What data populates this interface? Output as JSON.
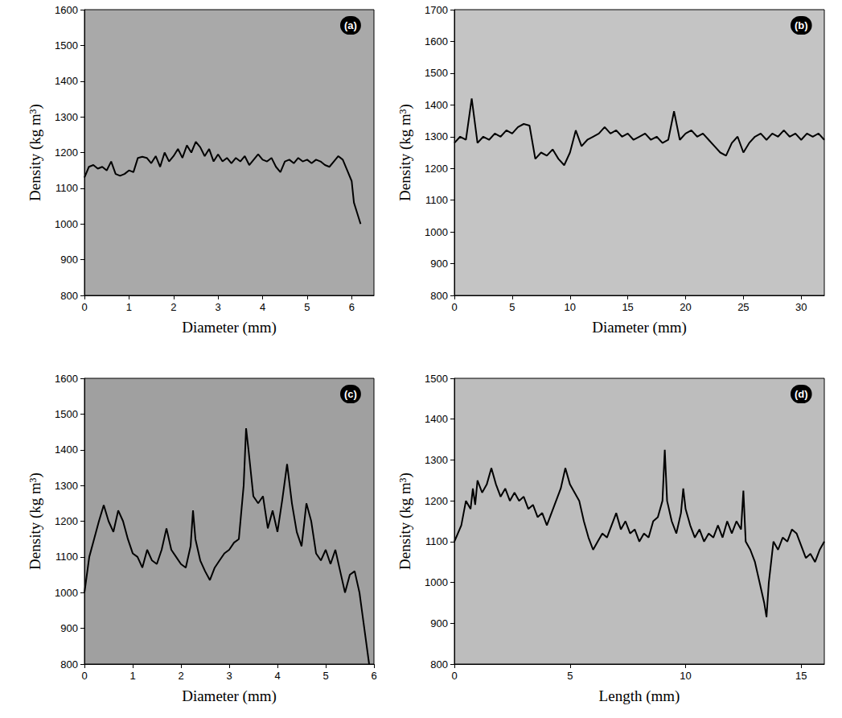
{
  "chart_data": [
    {
      "type": "line",
      "title": "(a)",
      "x_label": "Diameter (mm)",
      "y_label": "Density (kg m³)",
      "color": "#000000",
      "grid": false,
      "xlim": [
        0,
        6.5
      ],
      "xticks": [
        0,
        1,
        2,
        3,
        4,
        5,
        6
      ],
      "ylim": [
        800,
        1600
      ],
      "yticks": [
        800,
        900,
        1000,
        1100,
        1200,
        1300,
        1400,
        1500,
        1600
      ],
      "x": [
        0,
        0.1,
        0.2,
        0.3,
        0.4,
        0.5,
        0.6,
        0.7,
        0.8,
        0.9,
        1.0,
        1.1,
        1.2,
        1.3,
        1.4,
        1.5,
        1.6,
        1.7,
        1.8,
        1.9,
        2.0,
        2.1,
        2.2,
        2.3,
        2.4,
        2.5,
        2.6,
        2.7,
        2.8,
        2.9,
        3.0,
        3.1,
        3.2,
        3.3,
        3.4,
        3.5,
        3.6,
        3.7,
        3.8,
        3.9,
        4.0,
        4.1,
        4.2,
        4.3,
        4.4,
        4.5,
        4.6,
        4.7,
        4.8,
        4.9,
        5.0,
        5.1,
        5.2,
        5.3,
        5.4,
        5.5,
        5.6,
        5.7,
        5.8,
        5.9,
        6.0,
        6.05,
        6.1,
        6.2
      ],
      "values": [
        1130,
        1160,
        1165,
        1155,
        1160,
        1150,
        1175,
        1140,
        1135,
        1140,
        1150,
        1145,
        1185,
        1188,
        1185,
        1170,
        1190,
        1160,
        1200,
        1175,
        1190,
        1210,
        1185,
        1220,
        1200,
        1230,
        1215,
        1190,
        1210,
        1175,
        1195,
        1175,
        1185,
        1170,
        1185,
        1175,
        1190,
        1165,
        1180,
        1195,
        1180,
        1175,
        1185,
        1160,
        1145,
        1175,
        1180,
        1170,
        1185,
        1175,
        1180,
        1170,
        1180,
        1175,
        1165,
        1160,
        1175,
        1190,
        1180,
        1150,
        1120,
        1060,
        1040,
        1000
      ]
    },
    {
      "type": "line",
      "title": "(b)",
      "x_label": "Diameter (mm)",
      "y_label": "Density (kg m³)",
      "color": "#000000",
      "grid": false,
      "xlim": [
        0,
        32
      ],
      "xticks": [
        0,
        5,
        10,
        15,
        20,
        25,
        30
      ],
      "ylim": [
        800,
        1700
      ],
      "yticks": [
        800,
        900,
        1000,
        1100,
        1200,
        1300,
        1400,
        1500,
        1600,
        1700
      ],
      "x": [
        0,
        0.5,
        1,
        1.5,
        2,
        2.5,
        3,
        3.5,
        4,
        4.5,
        5,
        5.5,
        6,
        6.5,
        7,
        7.5,
        8,
        8.5,
        9,
        9.5,
        10,
        10.5,
        11,
        11.5,
        12,
        12.5,
        13,
        13.5,
        14,
        14.5,
        15,
        15.5,
        16,
        16.5,
        17,
        17.5,
        18,
        18.5,
        19,
        19.5,
        20,
        20.5,
        21,
        21.5,
        22,
        22.5,
        23,
        23.5,
        24,
        24.5,
        25,
        25.5,
        26,
        26.5,
        27,
        27.5,
        28,
        28.5,
        29,
        29.5,
        30,
        30.5,
        31,
        31.5,
        32
      ],
      "values": [
        1280,
        1300,
        1290,
        1420,
        1280,
        1300,
        1290,
        1310,
        1300,
        1320,
        1310,
        1330,
        1340,
        1335,
        1230,
        1250,
        1240,
        1260,
        1230,
        1210,
        1250,
        1320,
        1270,
        1290,
        1300,
        1310,
        1330,
        1310,
        1320,
        1300,
        1310,
        1290,
        1300,
        1310,
        1290,
        1300,
        1280,
        1290,
        1380,
        1290,
        1310,
        1320,
        1300,
        1310,
        1290,
        1270,
        1250,
        1240,
        1280,
        1300,
        1250,
        1280,
        1300,
        1310,
        1290,
        1310,
        1300,
        1320,
        1300,
        1310,
        1290,
        1310,
        1300,
        1310,
        1290
      ]
    },
    {
      "type": "line",
      "title": "(c)",
      "x_label": "Diameter (mm)",
      "y_label": "Density (kg m³)",
      "color": "#000000",
      "grid": false,
      "xlim": [
        0,
        6
      ],
      "xticks": [
        0,
        1,
        2,
        3,
        4,
        5,
        6
      ],
      "ylim": [
        800,
        1600
      ],
      "yticks": [
        800,
        900,
        1000,
        1100,
        1200,
        1300,
        1400,
        1500,
        1600
      ],
      "x": [
        0,
        0.1,
        0.2,
        0.3,
        0.4,
        0.5,
        0.6,
        0.7,
        0.8,
        0.9,
        1.0,
        1.1,
        1.2,
        1.3,
        1.4,
        1.5,
        1.6,
        1.7,
        1.8,
        1.9,
        2.0,
        2.1,
        2.2,
        2.25,
        2.3,
        2.4,
        2.5,
        2.6,
        2.7,
        2.8,
        2.9,
        3.0,
        3.1,
        3.2,
        3.3,
        3.35,
        3.4,
        3.5,
        3.6,
        3.7,
        3.8,
        3.9,
        4.0,
        4.1,
        4.2,
        4.3,
        4.4,
        4.5,
        4.6,
        4.7,
        4.8,
        4.9,
        5.0,
        5.1,
        5.2,
        5.3,
        5.4,
        5.5,
        5.6,
        5.7,
        5.8,
        5.9
      ],
      "values": [
        1000,
        1100,
        1150,
        1200,
        1245,
        1200,
        1170,
        1230,
        1200,
        1150,
        1110,
        1100,
        1070,
        1120,
        1090,
        1080,
        1120,
        1180,
        1120,
        1100,
        1080,
        1070,
        1130,
        1230,
        1150,
        1090,
        1060,
        1035,
        1070,
        1090,
        1110,
        1120,
        1140,
        1150,
        1300,
        1460,
        1400,
        1270,
        1250,
        1270,
        1180,
        1230,
        1170,
        1260,
        1360,
        1250,
        1170,
        1130,
        1250,
        1200,
        1110,
        1090,
        1120,
        1080,
        1120,
        1060,
        1000,
        1050,
        1060,
        1000,
        900,
        800
      ]
    },
    {
      "type": "line",
      "title": "(d)",
      "x_label": "Length (mm)",
      "y_label": "Density (kg m³)",
      "color": "#000000",
      "grid": false,
      "xlim": [
        0,
        16
      ],
      "xticks": [
        0,
        5,
        10,
        15
      ],
      "ylim": [
        800,
        1500
      ],
      "yticks": [
        800,
        900,
        1000,
        1100,
        1200,
        1300,
        1400,
        1500
      ],
      "x": [
        0,
        0.3,
        0.5,
        0.7,
        0.8,
        0.9,
        1.0,
        1.2,
        1.4,
        1.6,
        1.8,
        2,
        2.2,
        2.4,
        2.6,
        2.8,
        3,
        3.2,
        3.4,
        3.6,
        3.8,
        4,
        4.2,
        4.4,
        4.6,
        4.8,
        5,
        5.2,
        5.4,
        5.6,
        5.8,
        6,
        6.2,
        6.4,
        6.6,
        6.8,
        7,
        7.2,
        7.4,
        7.6,
        7.8,
        8,
        8.2,
        8.4,
        8.6,
        8.8,
        9,
        9.1,
        9.2,
        9.4,
        9.6,
        9.8,
        9.9,
        10,
        10.2,
        10.4,
        10.6,
        10.8,
        11,
        11.2,
        11.4,
        11.6,
        11.8,
        12,
        12.2,
        12.4,
        12.5,
        12.6,
        12.8,
        13,
        13.2,
        13.4,
        13.5,
        13.6,
        13.8,
        14,
        14.2,
        14.4,
        14.6,
        14.8,
        15,
        15.2,
        15.4,
        15.6,
        15.8,
        16
      ],
      "values": [
        1100,
        1140,
        1200,
        1180,
        1230,
        1190,
        1250,
        1220,
        1240,
        1280,
        1240,
        1210,
        1230,
        1200,
        1220,
        1200,
        1210,
        1180,
        1190,
        1160,
        1170,
        1140,
        1170,
        1200,
        1230,
        1280,
        1240,
        1220,
        1200,
        1150,
        1110,
        1080,
        1100,
        1120,
        1110,
        1140,
        1170,
        1130,
        1150,
        1120,
        1130,
        1100,
        1120,
        1110,
        1150,
        1160,
        1200,
        1325,
        1200,
        1150,
        1120,
        1170,
        1230,
        1180,
        1140,
        1110,
        1130,
        1100,
        1120,
        1110,
        1140,
        1110,
        1150,
        1120,
        1150,
        1130,
        1225,
        1100,
        1080,
        1050,
        1000,
        950,
        915,
        1000,
        1100,
        1080,
        1110,
        1100,
        1130,
        1120,
        1090,
        1060,
        1070,
        1050,
        1080,
        1100
      ]
    }
  ]
}
